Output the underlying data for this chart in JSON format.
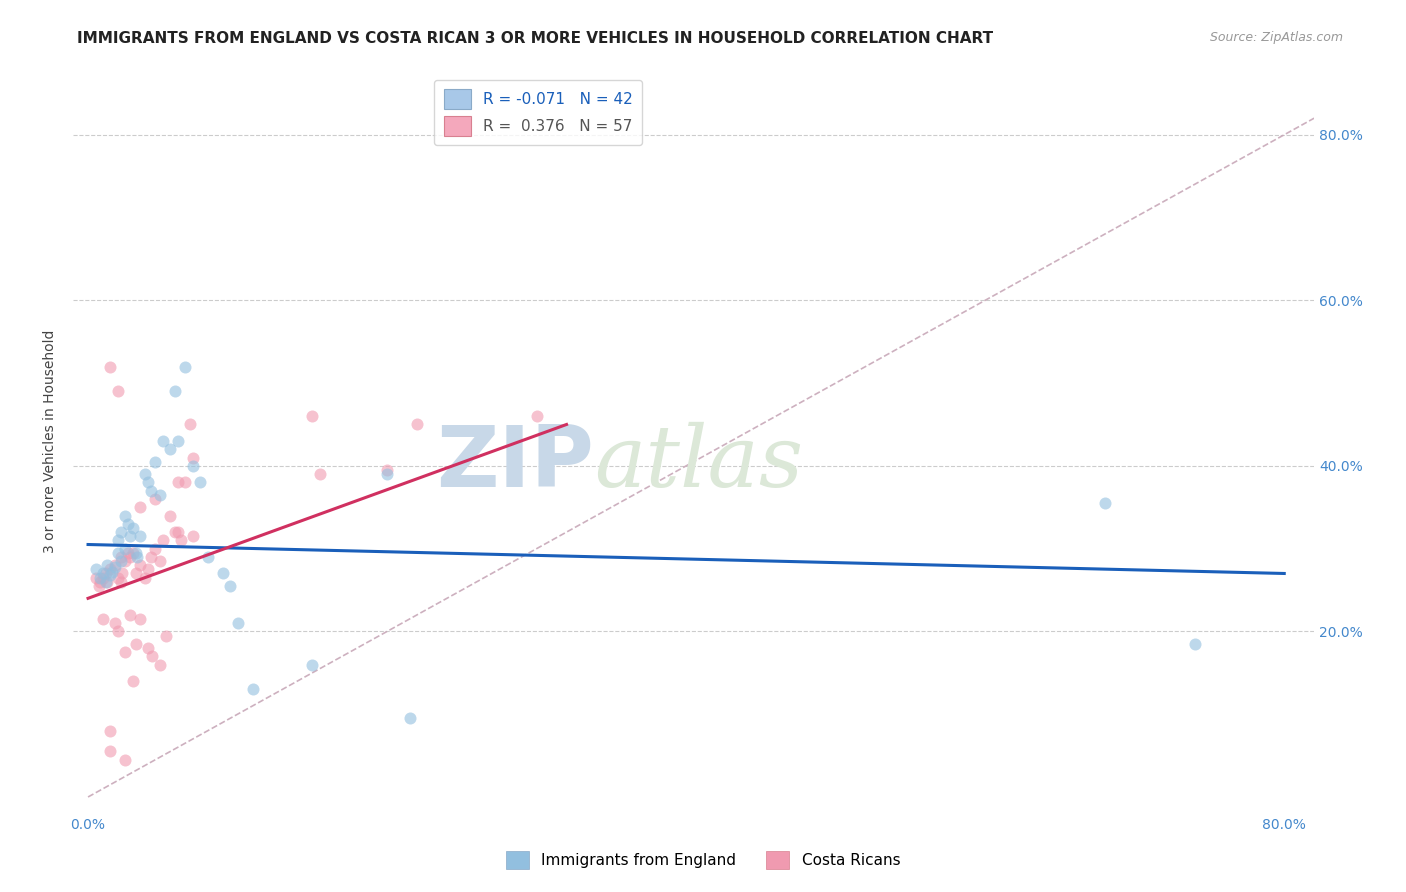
{
  "title": "IMMIGRANTS FROM ENGLAND VS COSTA RICAN 3 OR MORE VEHICLES IN HOUSEHOLD CORRELATION CHART",
  "source": "Source: ZipAtlas.com",
  "ylabel": "3 or more Vehicles in Household",
  "ytick_labels": [
    "20.0%",
    "40.0%",
    "60.0%",
    "80.0%"
  ],
  "ytick_values": [
    0.2,
    0.4,
    0.6,
    0.8
  ],
  "xtick_values": [
    0.0,
    0.1,
    0.2,
    0.3,
    0.4,
    0.5,
    0.6,
    0.7,
    0.8
  ],
  "xlim": [
    -0.01,
    0.82
  ],
  "ylim": [
    -0.02,
    0.88
  ],
  "blue_scatter_x": [
    0.005,
    0.008,
    0.01,
    0.012,
    0.013,
    0.015,
    0.016,
    0.018,
    0.02,
    0.02,
    0.022,
    0.022,
    0.025,
    0.025,
    0.027,
    0.028,
    0.03,
    0.032,
    0.033,
    0.035,
    0.038,
    0.04,
    0.042,
    0.045,
    0.048,
    0.05,
    0.055,
    0.058,
    0.06,
    0.065,
    0.07,
    0.075,
    0.08,
    0.09,
    0.095,
    0.1,
    0.11,
    0.15,
    0.2,
    0.215,
    0.68,
    0.74
  ],
  "blue_scatter_y": [
    0.275,
    0.265,
    0.27,
    0.26,
    0.28,
    0.268,
    0.272,
    0.278,
    0.295,
    0.31,
    0.285,
    0.32,
    0.3,
    0.34,
    0.33,
    0.315,
    0.325,
    0.295,
    0.29,
    0.315,
    0.39,
    0.38,
    0.37,
    0.405,
    0.365,
    0.43,
    0.42,
    0.49,
    0.43,
    0.52,
    0.4,
    0.38,
    0.29,
    0.27,
    0.255,
    0.21,
    0.13,
    0.16,
    0.39,
    0.095,
    0.355,
    0.185
  ],
  "pink_scatter_x": [
    0.005,
    0.007,
    0.008,
    0.01,
    0.01,
    0.012,
    0.013,
    0.015,
    0.015,
    0.018,
    0.018,
    0.02,
    0.02,
    0.022,
    0.022,
    0.023,
    0.025,
    0.025,
    0.027,
    0.028,
    0.028,
    0.03,
    0.03,
    0.032,
    0.032,
    0.035,
    0.035,
    0.038,
    0.04,
    0.04,
    0.042,
    0.043,
    0.045,
    0.048,
    0.048,
    0.05,
    0.052,
    0.055,
    0.058,
    0.06,
    0.062,
    0.065,
    0.068,
    0.07,
    0.07,
    0.015,
    0.02,
    0.15,
    0.155,
    0.2,
    0.22,
    0.3,
    0.015,
    0.025,
    0.035,
    0.045,
    0.06
  ],
  "pink_scatter_y": [
    0.265,
    0.255,
    0.26,
    0.265,
    0.215,
    0.27,
    0.26,
    0.275,
    0.08,
    0.28,
    0.21,
    0.265,
    0.2,
    0.26,
    0.29,
    0.27,
    0.285,
    0.175,
    0.295,
    0.22,
    0.29,
    0.295,
    0.14,
    0.27,
    0.185,
    0.28,
    0.215,
    0.265,
    0.275,
    0.18,
    0.29,
    0.17,
    0.3,
    0.285,
    0.16,
    0.31,
    0.195,
    0.34,
    0.32,
    0.32,
    0.31,
    0.38,
    0.45,
    0.315,
    0.41,
    0.52,
    0.49,
    0.46,
    0.39,
    0.395,
    0.45,
    0.46,
    0.055,
    0.045,
    0.35,
    0.36,
    0.38
  ],
  "blue_line_x": [
    0.0,
    0.8
  ],
  "blue_line_y": [
    0.305,
    0.27
  ],
  "pink_line_x": [
    0.0,
    0.32
  ],
  "pink_line_y": [
    0.24,
    0.45
  ],
  "diagonal_line_x": [
    0.0,
    0.82
  ],
  "diagonal_line_y": [
    0.0,
    0.82
  ],
  "scatter_alpha": 0.6,
  "scatter_size": 75,
  "blue_color": "#92bfdf",
  "pink_color": "#f09ab0",
  "blue_line_color": "#1a5fba",
  "pink_line_color": "#d03060",
  "diagonal_color": "#c8a8b8",
  "watermark_zip": "ZIP",
  "watermark_atlas": "atlas",
  "watermark_color": "#c8d8e8",
  "title_fontsize": 11,
  "axis_label_fontsize": 10,
  "tick_fontsize": 10,
  "legend_fontsize": 11,
  "legend_blue_r": "R = ",
  "legend_blue_rval": "-0.071",
  "legend_blue_n": "  N = ",
  "legend_blue_nval": "42",
  "legend_pink_r": "R =  ",
  "legend_pink_rval": "0.376",
  "legend_pink_n": "  N = ",
  "legend_pink_nval": "57"
}
